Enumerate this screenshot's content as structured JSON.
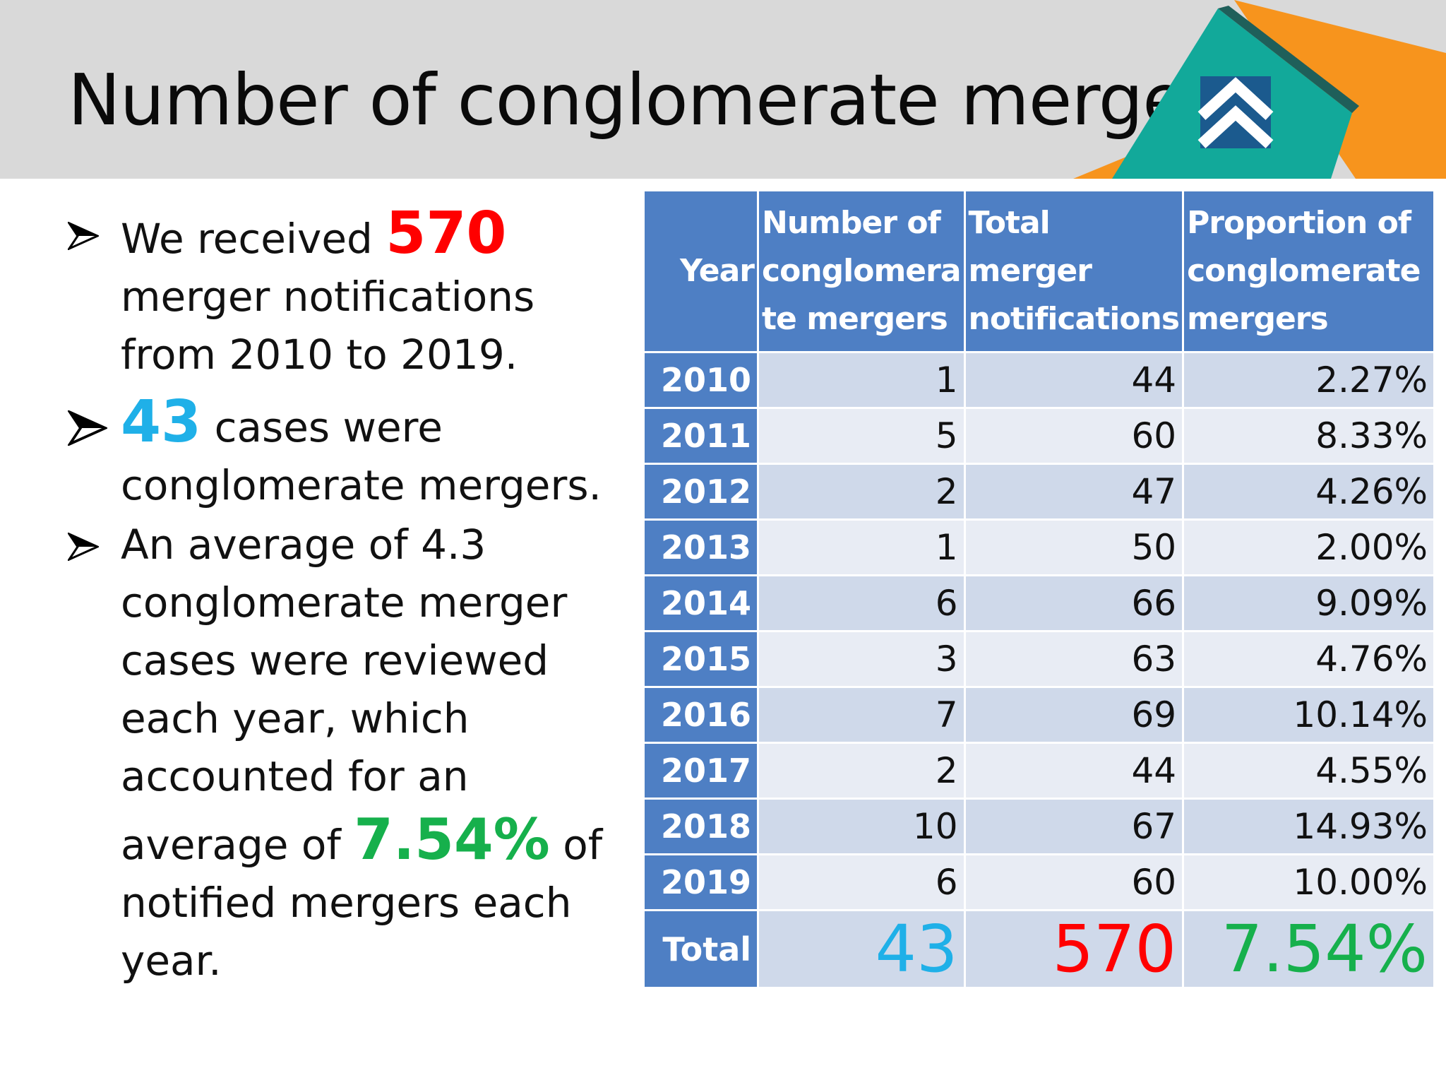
{
  "page": {
    "title": "Number of conglomerate mergers"
  },
  "colors": {
    "header_bg": "#d9d9d9",
    "table_header": "#4e7fc4",
    "row_dark": "#cfd9ea",
    "row_light": "#e8ecf4",
    "highlight_red": "#ff0000",
    "highlight_blue": "#1fb0e8",
    "highlight_green": "#16b04c",
    "logo_teal": "#12a99a",
    "logo_orange": "#f7941d",
    "logo_blue": "#1b5a8e"
  },
  "icons": {
    "bullet": "arrowhead-bullet-icon",
    "logo": "double-chevron-up-logo"
  },
  "bullets": {
    "b1": {
      "prefix": "We received",
      "highlight": "570",
      "line2": "merger notifications",
      "line3": "from 2010 to 2019."
    },
    "b2": {
      "highlight": "43",
      "text1": "cases were",
      "line2": "conglomerate mergers."
    },
    "b3": {
      "line1": "An average of 4.3",
      "line2": "conglomerate merger",
      "line3": "cases were reviewed",
      "line4": "each year, which",
      "line5": "accounted for an",
      "line6_prefix": "average of",
      "highlight": "7.54%",
      "line6_suffix": "of",
      "line7": "notified mergers each",
      "line8": "year."
    }
  },
  "chart_data": {
    "type": "table",
    "columns": [
      "Year",
      "Number of conglomerate mergers",
      "Total merger notifications",
      "Proportion of conglomerate mergers"
    ],
    "header_lines": {
      "year": [
        "Year"
      ],
      "conglomerate": [
        "Number of",
        "conglomera",
        "te mergers"
      ],
      "total": [
        "Total merger",
        "notifications"
      ],
      "proportion": [
        "Proportion of",
        "conglomerate",
        "mergers"
      ]
    },
    "rows": [
      {
        "year": "2010",
        "conglomerate": "1",
        "total": "44",
        "proportion": "2.27%"
      },
      {
        "year": "2011",
        "conglomerate": "5",
        "total": "60",
        "proportion": "8.33%"
      },
      {
        "year": "2012",
        "conglomerate": "2",
        "total": "47",
        "proportion": "4.26%"
      },
      {
        "year": "2013",
        "conglomerate": "1",
        "total": "50",
        "proportion": "2.00%"
      },
      {
        "year": "2014",
        "conglomerate": "6",
        "total": "66",
        "proportion": "9.09%"
      },
      {
        "year": "2015",
        "conglomerate": "3",
        "total": "63",
        "proportion": "4.76%"
      },
      {
        "year": "2016",
        "conglomerate": "7",
        "total": "69",
        "proportion": "10.14%"
      },
      {
        "year": "2017",
        "conglomerate": "2",
        "total": "44",
        "proportion": "4.55%"
      },
      {
        "year": "2018",
        "conglomerate": "10",
        "total": "67",
        "proportion": "14.93%"
      },
      {
        "year": "2019",
        "conglomerate": "6",
        "total": "60",
        "proportion": "10.00%"
      }
    ],
    "total": {
      "label": "Total",
      "conglomerate": "43",
      "total": "570",
      "proportion": "7.54%"
    }
  }
}
